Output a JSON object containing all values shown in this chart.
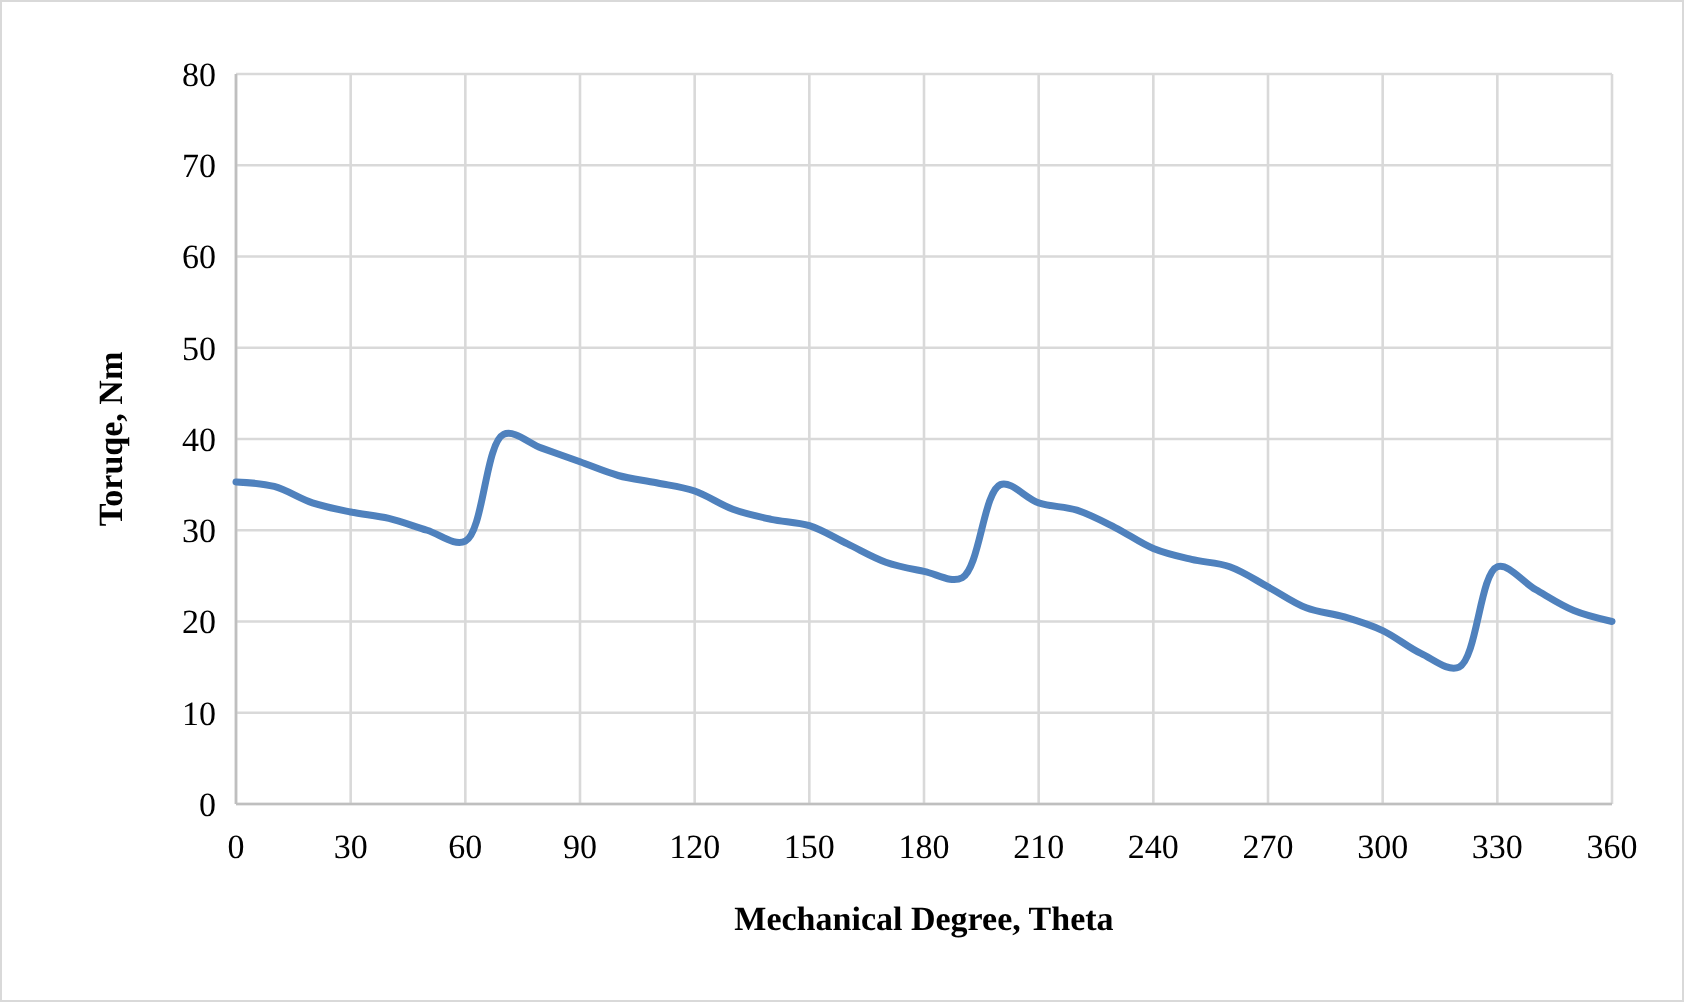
{
  "chart_data": {
    "type": "line",
    "xlabel": "Mechanical Degree, Theta",
    "ylabel": "Toruqe, Nm",
    "x": [
      0,
      10,
      20,
      30,
      40,
      50,
      60,
      70,
      80,
      90,
      100,
      110,
      120,
      130,
      140,
      150,
      160,
      170,
      180,
      190,
      200,
      210,
      220,
      230,
      240,
      250,
      260,
      270,
      280,
      290,
      300,
      310,
      320,
      330,
      340,
      350,
      360
    ],
    "series": [
      {
        "color": "#4f81bd",
        "values": [
          35.3,
          34.8,
          33,
          32,
          31.3,
          30,
          28.8,
          40.5,
          39,
          37.5,
          36,
          35.2,
          34.3,
          32.3,
          31.2,
          30.5,
          28.5,
          26.5,
          25.5,
          24.8,
          35,
          33,
          32.2,
          30.3,
          28,
          26.8,
          26,
          23.8,
          21.5,
          20.5,
          19,
          16.5,
          15,
          26,
          23.5,
          21.2,
          20
        ]
      }
    ],
    "xlim": [
      0,
      360
    ],
    "xticks": [
      0,
      30,
      60,
      90,
      120,
      150,
      180,
      210,
      240,
      270,
      300,
      330,
      360
    ],
    "ylim": [
      0,
      80
    ],
    "yticks": [
      0,
      10,
      20,
      30,
      40,
      50,
      60,
      70,
      80
    ],
    "grid": true,
    "marker": "none",
    "line_style": "solid"
  }
}
